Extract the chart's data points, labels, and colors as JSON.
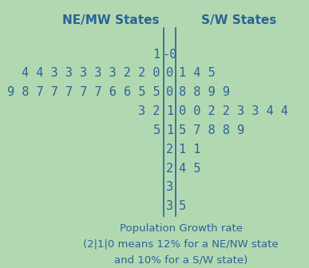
{
  "title_left": "NE/MW States",
  "title_right": "S/W States",
  "rows": [
    {
      "stem": "-0",
      "left": "1",
      "right": ""
    },
    {
      "stem": "0",
      "left": "4433333220",
      "right": "145"
    },
    {
      "stem": "0",
      "left": "98777776655",
      "right": "8899"
    },
    {
      "stem": "1",
      "left": "32",
      "right": "00223344"
    },
    {
      "stem": "1",
      "left": "5",
      "right": "57889"
    },
    {
      "stem": "2",
      "left": "",
      "right": "11"
    },
    {
      "stem": "2",
      "left": "",
      "right": "45"
    },
    {
      "stem": "3",
      "left": "",
      "right": ""
    },
    {
      "stem": "3",
      "left": "",
      "right": "5"
    }
  ],
  "footnote_line1": "Population Growth rate",
  "footnote_line2": "(2|1|0 means 12% for a NE/NW state",
  "footnote_line3": "and 10% for a S/W state)",
  "bg_color": "#b2d8b2",
  "text_color": "#2a6496",
  "font_size": 11,
  "fig_width": 3.87,
  "fig_height": 3.36
}
